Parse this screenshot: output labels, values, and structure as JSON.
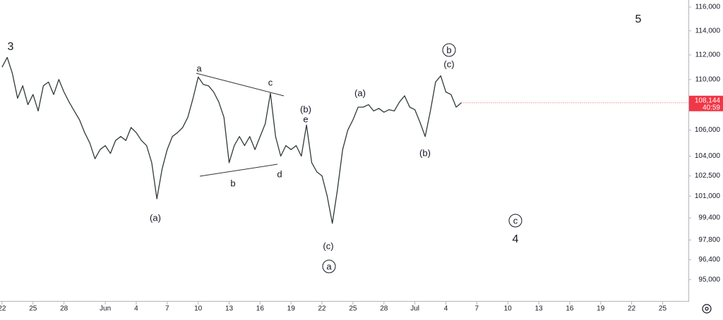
{
  "chart_data": {
    "type": "line",
    "x": [
      0,
      0.5,
      1,
      1.5,
      2,
      2.5,
      3,
      3.5,
      4,
      4.5,
      5,
      5.5,
      6,
      6.5,
      7,
      7.5,
      8,
      8.5,
      9,
      9.5,
      10,
      10.5,
      11,
      11.5,
      12,
      12.5,
      13,
      13.5,
      14,
      14.5,
      15,
      15.5,
      16,
      16.5,
      17,
      17.5,
      18,
      18.5,
      19,
      19.5,
      20,
      20.5,
      21,
      21.5,
      22,
      22.5,
      23,
      23.5,
      24,
      24.5,
      25,
      25.5,
      26,
      26.5,
      27,
      27.5,
      28,
      28.5,
      29,
      29.5,
      30,
      30.5,
      31,
      31.5,
      32,
      32.5,
      33,
      33.5,
      34,
      34.5,
      35,
      35.5,
      36,
      36.5,
      37,
      37.5,
      38,
      38.5,
      39,
      39.5,
      40,
      40.5,
      41,
      41.5,
      42,
      42.5,
      43,
      43.5,
      44,
      44.5
    ],
    "series": [
      {
        "color": "#2f3a36",
        "values": [
          111000,
          111800,
          110500,
          108500,
          109500,
          108000,
          108800,
          107500,
          109500,
          109800,
          108800,
          110000,
          109000,
          108200,
          107500,
          106800,
          105800,
          105000,
          103800,
          104500,
          104800,
          104200,
          105200,
          105500,
          105200,
          106200,
          105800,
          105200,
          104800,
          103500,
          100800,
          103000,
          104500,
          105500,
          105800,
          106200,
          107000,
          108500,
          110200,
          109600,
          109500,
          109000,
          108200,
          107000,
          103500,
          104800,
          105500,
          104800,
          105500,
          104500,
          105500,
          106500,
          108900,
          105500,
          104000,
          104800,
          104500,
          104800,
          104000,
          106400,
          103500,
          102800,
          102500,
          101000,
          99000,
          101500,
          104500,
          106000,
          106800,
          107800,
          107800,
          108000,
          107500,
          107700,
          107400,
          107600,
          107500,
          108200,
          108700,
          107800,
          107600,
          106600,
          105500,
          107500,
          109800,
          110300,
          109000,
          108800,
          107800,
          108144
        ]
      }
    ],
    "xlim": [
      -0.2,
      66.5
    ],
    "xticks": [
      {
        "value": 0,
        "label": "22"
      },
      {
        "value": 3,
        "label": "25"
      },
      {
        "value": 6,
        "label": "28"
      },
      {
        "value": 10,
        "label": "Jun"
      },
      {
        "value": 13,
        "label": "4"
      },
      {
        "value": 16,
        "label": "7"
      },
      {
        "value": 19,
        "label": "10"
      },
      {
        "value": 22,
        "label": "13"
      },
      {
        "value": 25,
        "label": "16"
      },
      {
        "value": 28,
        "label": "19"
      },
      {
        "value": 31,
        "label": "22"
      },
      {
        "value": 34,
        "label": "25"
      },
      {
        "value": 37,
        "label": "28"
      },
      {
        "value": 40,
        "label": "Jul"
      },
      {
        "value": 43,
        "label": "4"
      },
      {
        "value": 46,
        "label": "7"
      },
      {
        "value": 49,
        "label": "10"
      },
      {
        "value": 52,
        "label": "13"
      },
      {
        "value": 55,
        "label": "16"
      },
      {
        "value": 58,
        "label": "19"
      },
      {
        "value": 61,
        "label": "22"
      },
      {
        "value": 64,
        "label": "25"
      }
    ],
    "ylim": [
      93480,
      116600
    ],
    "log_scale": true,
    "grid": false,
    "yticks": [
      {
        "value": 116000,
        "label": "116,000"
      },
      {
        "value": 114000,
        "label": "114,000"
      },
      {
        "value": 112000,
        "label": "112,000"
      },
      {
        "value": 110000,
        "label": "110,000"
      },
      {
        "value": 106000,
        "label": "106,000"
      },
      {
        "value": 104000,
        "label": "104,000"
      },
      {
        "value": 102500,
        "label": "102,500"
      },
      {
        "value": 101000,
        "label": "101,000"
      },
      {
        "value": 99400,
        "label": "99,400"
      },
      {
        "value": 97800,
        "label": "97,800"
      },
      {
        "value": 96400,
        "label": "96,400"
      },
      {
        "value": 95000,
        "label": "95,000"
      }
    ],
    "last_price": {
      "value": 108144,
      "label": "108,144",
      "countdown": "40:59",
      "color": "#f23645"
    },
    "annotations": [
      "3",
      "a",
      "b",
      "c",
      "d",
      "e",
      "(a)",
      "(b)",
      "(c)",
      "(a)",
      "(b)",
      "(c)",
      "5",
      "4",
      "a",
      "b",
      "c"
    ]
  }
}
